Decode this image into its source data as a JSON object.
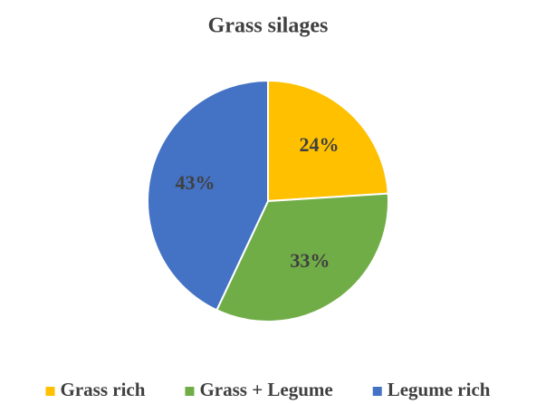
{
  "chart_data": {
    "type": "pie",
    "title": "Grass silages",
    "categories": [
      "Grass rich",
      "Grass + Legume",
      "Legume rich"
    ],
    "values": [
      24,
      33,
      43
    ],
    "value_labels": [
      "24%",
      "33%",
      "43%"
    ],
    "colors": [
      "#FFC000",
      "#70AD47",
      "#4472C4"
    ],
    "legend": "bottom"
  }
}
